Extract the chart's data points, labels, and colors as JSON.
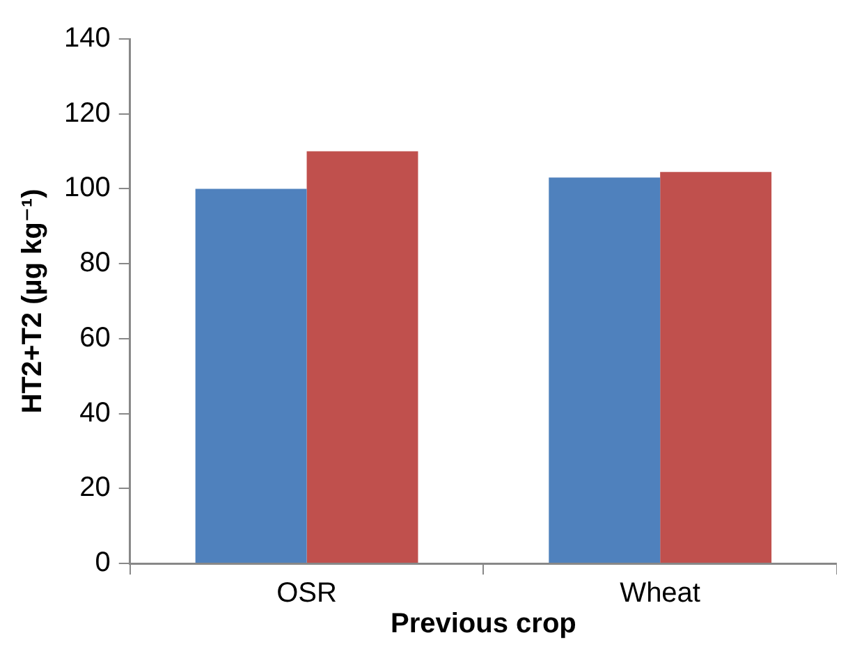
{
  "chart_data": {
    "type": "bar",
    "xlabel": "Previous crop",
    "ylabel": "HT2+T2 (µg kg⁻¹)",
    "categories": [
      "OSR",
      "Wheat"
    ],
    "series": [
      {
        "color": "#4f81bd",
        "values": [
          100,
          103
        ]
      },
      {
        "color": "#c0504d",
        "values": [
          110,
          104.5
        ]
      }
    ],
    "ylim": [
      0,
      140
    ],
    "yticks": [
      0,
      20,
      40,
      60,
      80,
      100,
      120,
      140
    ],
    "grid": false,
    "legend": false
  }
}
